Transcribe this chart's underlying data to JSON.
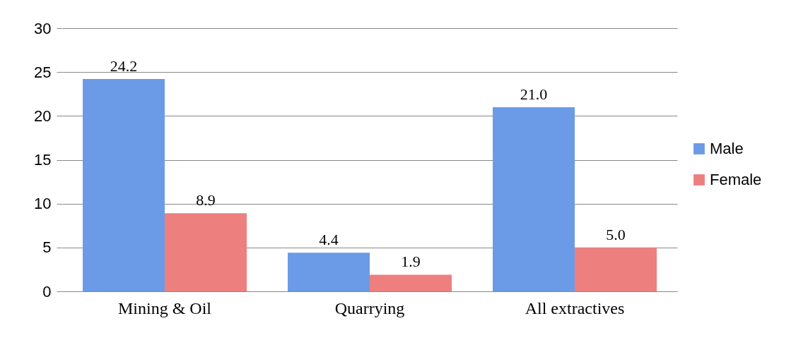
{
  "chart_data": {
    "type": "bar",
    "categories": [
      "Mining & Oil",
      "Quarrying",
      "All extractives"
    ],
    "series": [
      {
        "name": "Male",
        "color": "#6b9be6",
        "values": [
          24.2,
          4.4,
          21.0
        ],
        "value_labels": [
          "24.2",
          "4.4",
          "21.0"
        ]
      },
      {
        "name": "Female",
        "color": "#ee7f7f",
        "values": [
          8.9,
          1.9,
          5.0
        ],
        "value_labels": [
          "8.9",
          "1.9",
          "5.0"
        ]
      }
    ],
    "ylim": [
      0,
      30
    ],
    "yticks": [
      0,
      5,
      10,
      15,
      20,
      25,
      30
    ],
    "grid": "y",
    "legend": "right"
  }
}
